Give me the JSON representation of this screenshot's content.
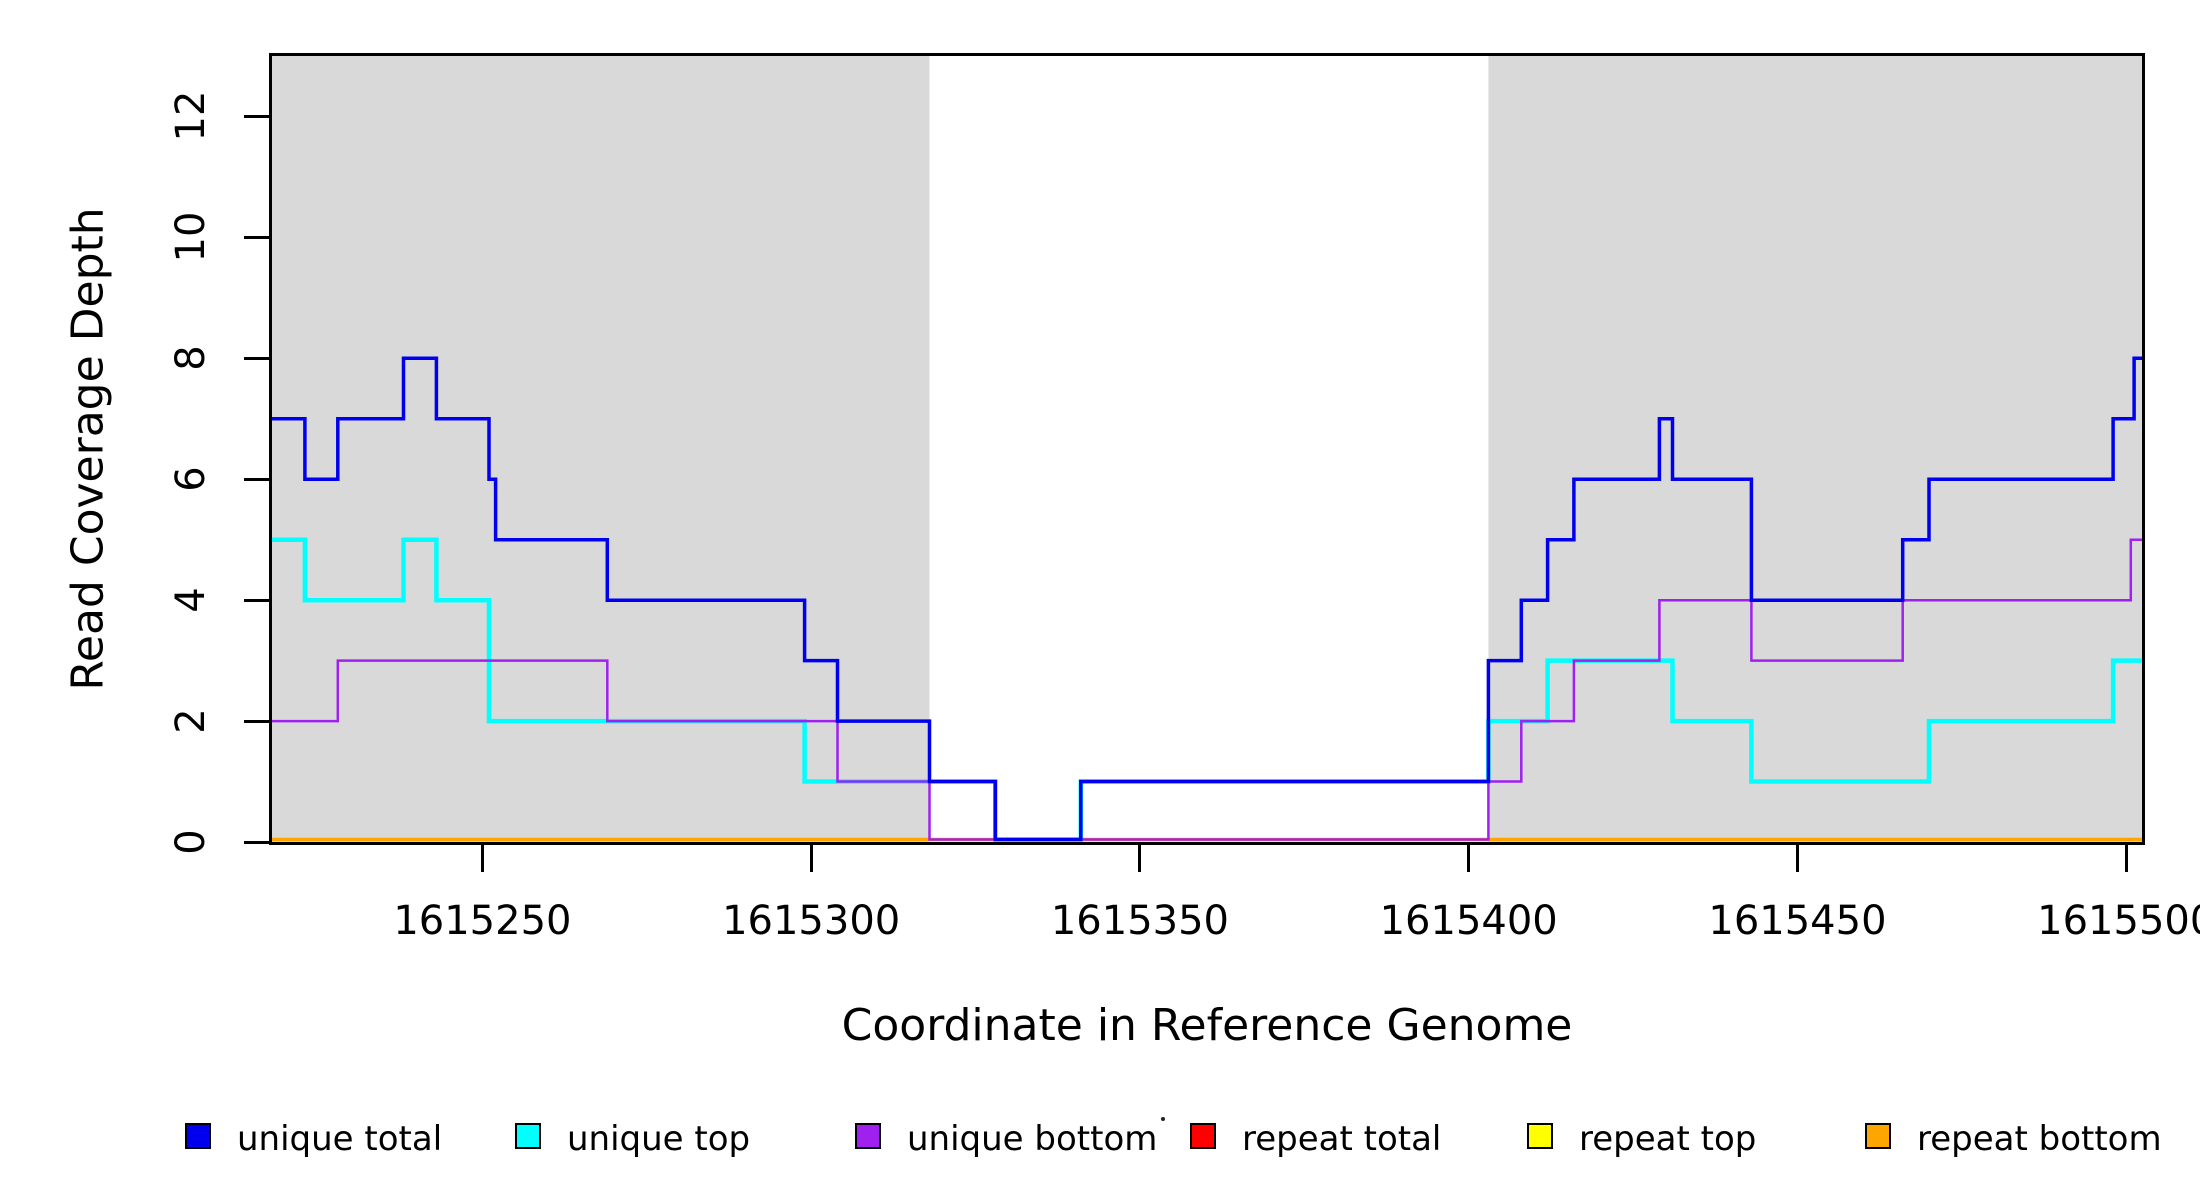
{
  "axes": {
    "x_title": "Coordinate in Reference Genome",
    "y_title": "Read Coverage Depth"
  },
  "legend": {
    "stray_mark": ".",
    "items": [
      {
        "label": "unique total",
        "color": "#0000EE"
      },
      {
        "label": "unique top",
        "color": "#00FFFF"
      },
      {
        "label": "unique bottom",
        "color": "#A020F0"
      },
      {
        "label": "repeat total",
        "color": "#FF0000"
      },
      {
        "label": "repeat top",
        "color": "#FFFF00"
      },
      {
        "label": "repeat bottom",
        "color": "#FFA500"
      }
    ]
  },
  "chart_data": {
    "type": "line",
    "step": true,
    "title": "",
    "xlabel": "Coordinate in Reference Genome",
    "ylabel": "Read Coverage Depth",
    "xlim": [
      1615218,
      1615502.4
    ],
    "ylim": [
      0,
      13
    ],
    "x_ticks": [
      1615250,
      1615300,
      1615350,
      1615400,
      1615450,
      1615500
    ],
    "y_ticks": [
      0,
      2,
      4,
      6,
      8,
      10,
      12
    ],
    "grid": false,
    "legend_position": "bottom",
    "shaded_regions": [
      {
        "name": "left-gray-band",
        "x0": 1615218,
        "x1": 1615318,
        "color": "#D9D9D9"
      },
      {
        "name": "right-gray-band",
        "x0": 1615403,
        "x1": 1615502.4,
        "color": "#D9D9D9"
      }
    ],
    "draw_order": [
      "repeat total",
      "repeat top",
      "repeat bottom",
      "unique top",
      "unique bottom",
      "unique total"
    ],
    "series": [
      {
        "name": "unique total",
        "color": "#0000EE",
        "width": 3.5,
        "segments": [
          [
            1615218,
            1615223,
            7
          ],
          [
            1615223,
            1615228,
            6
          ],
          [
            1615228,
            1615238,
            7
          ],
          [
            1615238,
            1615243,
            8
          ],
          [
            1615243,
            1615251,
            7
          ],
          [
            1615251,
            1615252,
            6
          ],
          [
            1615252,
            1615269,
            5
          ],
          [
            1615269,
            1615299,
            4
          ],
          [
            1615299,
            1615304,
            3
          ],
          [
            1615304,
            1615318,
            2
          ],
          [
            1615318,
            1615328,
            1
          ],
          [
            1615328,
            1615341,
            0
          ],
          [
            1615341,
            1615403,
            1
          ],
          [
            1615403,
            1615408,
            3
          ],
          [
            1615408,
            1615412,
            4
          ],
          [
            1615412,
            1615416,
            5
          ],
          [
            1615416,
            1615429,
            6
          ],
          [
            1615429,
            1615431,
            7
          ],
          [
            1615431,
            1615443,
            6
          ],
          [
            1615443,
            1615466,
            4
          ],
          [
            1615466,
            1615470,
            5
          ],
          [
            1615470,
            1615498,
            6
          ],
          [
            1615498,
            1615501.2,
            7
          ],
          [
            1615501.2,
            1615502.4,
            8
          ]
        ]
      },
      {
        "name": "unique top",
        "color": "#00FFFF",
        "width": 4.5,
        "segments": [
          [
            1615218,
            1615223,
            5
          ],
          [
            1615223,
            1615238,
            4
          ],
          [
            1615238,
            1615243,
            5
          ],
          [
            1615243,
            1615251,
            4
          ],
          [
            1615251,
            1615299,
            2
          ],
          [
            1615299,
            1615328,
            1
          ],
          [
            1615328,
            1615341,
            0
          ],
          [
            1615341,
            1615403,
            1
          ],
          [
            1615403,
            1615412,
            2
          ],
          [
            1615412,
            1615431,
            3
          ],
          [
            1615431,
            1615443,
            2
          ],
          [
            1615443,
            1615470,
            1
          ],
          [
            1615470,
            1615498,
            2
          ],
          [
            1615498,
            1615502.4,
            3
          ]
        ]
      },
      {
        "name": "unique bottom",
        "color": "#A020F0",
        "width": 2.5,
        "segments": [
          [
            1615218,
            1615228,
            2
          ],
          [
            1615228,
            1615269,
            3
          ],
          [
            1615269,
            1615304,
            2
          ],
          [
            1615304,
            1615318,
            1
          ],
          [
            1615318,
            1615403,
            0
          ],
          [
            1615403,
            1615408,
            1
          ],
          [
            1615408,
            1615416,
            2
          ],
          [
            1615416,
            1615429,
            3
          ],
          [
            1615429,
            1615443,
            4
          ],
          [
            1615443,
            1615466,
            3
          ],
          [
            1615466,
            1615500.7,
            4
          ],
          [
            1615500.7,
            1615502.4,
            5
          ]
        ]
      },
      {
        "name": "repeat total",
        "color": "#FF0000",
        "width": 3,
        "segments": [
          [
            1615218,
            1615502.4,
            0
          ]
        ]
      },
      {
        "name": "repeat top",
        "color": "#FFFF00",
        "width": 3,
        "segments": [
          [
            1615218,
            1615502.4,
            0
          ]
        ]
      },
      {
        "name": "repeat bottom",
        "color": "#FFA500",
        "width": 3.5,
        "segments": [
          [
            1615218,
            1615502.4,
            0
          ]
        ]
      }
    ]
  }
}
